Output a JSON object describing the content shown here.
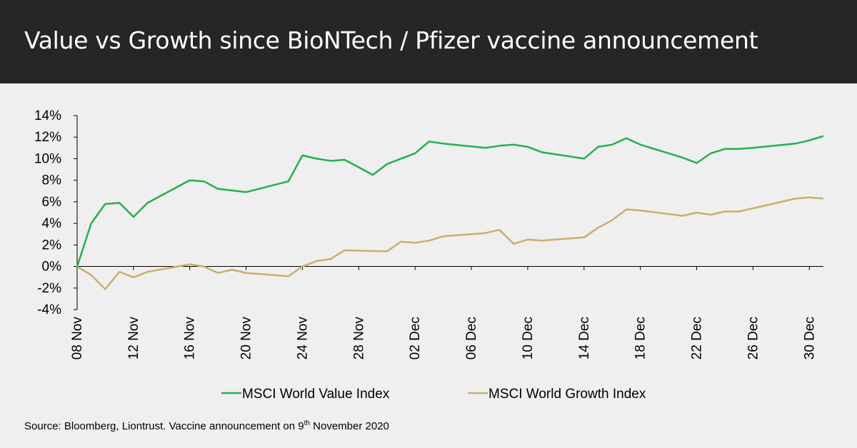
{
  "title": "Value vs Growth since BioNTech / Pfizer vaccine announcement",
  "source": {
    "prefix": "Source: Bloomberg, Liontrust. Vaccine announcement on 9",
    "superscript": "th",
    "suffix": " November 2020"
  },
  "chart_data": {
    "type": "line",
    "title": "Value vs Growth since BioNTech / Pfizer vaccine announcement",
    "xlabel": "",
    "ylabel": "",
    "ylim": [
      -4,
      14
    ],
    "y_ticks": [
      "14%",
      "12%",
      "10%",
      "8%",
      "6%",
      "4%",
      "2%",
      "0%",
      "-2%",
      "-4%"
    ],
    "x_range_days": [
      0,
      53
    ],
    "x_ticks": [
      {
        "label": "08 Nov",
        "day": 0
      },
      {
        "label": "12 Nov",
        "day": 4
      },
      {
        "label": "16 Nov",
        "day": 8
      },
      {
        "label": "20 Nov",
        "day": 12
      },
      {
        "label": "24 Nov",
        "day": 16
      },
      {
        "label": "28 Nov",
        "day": 20
      },
      {
        "label": "02 Dec",
        "day": 24
      },
      {
        "label": "06 Dec",
        "day": 28
      },
      {
        "label": "10 Dec",
        "day": 32
      },
      {
        "label": "14 Dec",
        "day": 36
      },
      {
        "label": "18 Dec",
        "day": 40
      },
      {
        "label": "22 Dec",
        "day": 44
      },
      {
        "label": "26 Dec",
        "day": 48
      },
      {
        "label": "30 Dec",
        "day": 52
      }
    ],
    "legend_position": "bottom",
    "series": [
      {
        "name": "MSCI World Value Index",
        "color": "#22b14c",
        "x": [
          0,
          1,
          2,
          3,
          4,
          5,
          8,
          9,
          10,
          12,
          15,
          16,
          17,
          18,
          19,
          21,
          22,
          23,
          24,
          25,
          26,
          29,
          30,
          31,
          32,
          33,
          36,
          37,
          38,
          39,
          40,
          43,
          44,
          45,
          46,
          47,
          48,
          51,
          52,
          53
        ],
        "values": [
          0,
          4.0,
          5.8,
          5.9,
          4.6,
          5.9,
          8.0,
          7.9,
          7.2,
          6.9,
          7.9,
          10.3,
          10.0,
          9.8,
          9.9,
          8.5,
          9.5,
          10.0,
          10.5,
          11.6,
          11.4,
          11.0,
          11.2,
          11.3,
          11.1,
          10.6,
          10.0,
          11.1,
          11.3,
          11.9,
          11.3,
          10.1,
          9.6,
          10.5,
          10.9,
          10.9,
          11.0,
          11.4,
          11.7,
          12.1
        ]
      },
      {
        "name": "MSCI World Growth Index",
        "color": "#c8b06a",
        "x": [
          0,
          1,
          2,
          3,
          4,
          5,
          8,
          9,
          10,
          11,
          12,
          15,
          16,
          17,
          18,
          19,
          22,
          23,
          24,
          25,
          26,
          29,
          30,
          31,
          32,
          33,
          36,
          37,
          38,
          39,
          40,
          43,
          44,
          45,
          46,
          47,
          48,
          51,
          52,
          53
        ],
        "values": [
          0,
          -0.8,
          -2.1,
          -0.5,
          -1.0,
          -0.5,
          0.2,
          0.0,
          -0.6,
          -0.3,
          -0.6,
          -0.9,
          0.0,
          0.5,
          0.7,
          1.5,
          1.4,
          2.3,
          2.2,
          2.4,
          2.8,
          3.1,
          3.4,
          2.1,
          2.5,
          2.4,
          2.7,
          3.6,
          4.3,
          5.3,
          5.2,
          4.7,
          5.0,
          4.8,
          5.1,
          5.1,
          5.4,
          6.3,
          6.4,
          6.3
        ]
      }
    ]
  }
}
